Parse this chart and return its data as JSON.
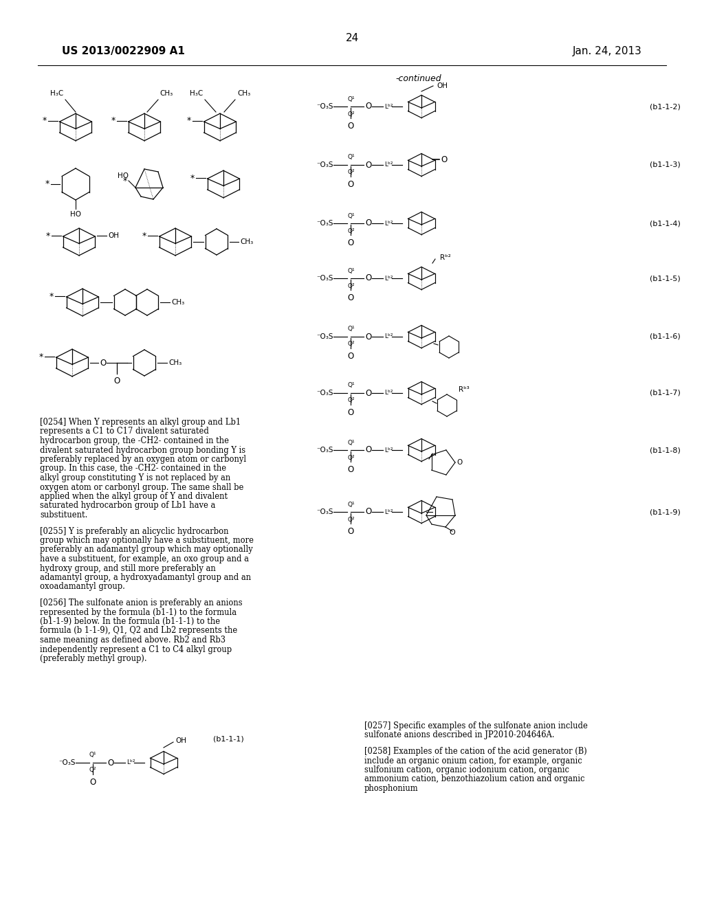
{
  "page_number": "24",
  "patent_number": "US 2013/0022909 A1",
  "patent_date": "Jan. 24, 2013",
  "background_color": "#ffffff",
  "text_color": "#000000",
  "continued_label": "-continued",
  "labels_right": [
    "(b1-1-2)",
    "(b1-1-3)",
    "(b1-1-4)",
    "(b1-1-5)",
    "(b1-1-6)",
    "(b1-1-7)",
    "(b1-1-8)",
    "(b1-1-9)"
  ],
  "label_left": "(b1-1-1)",
  "sup_minus": "⁻",
  "sup_O3S": "⁻O₃S",
  "Q1": "Q¹",
  "Q2": "Q²",
  "Lb2": "Lᵇ²",
  "Rb2": "Rᵇ²",
  "Rb3": "Rᵇ³",
  "H3C": "H₃C",
  "CH3": "CH₃",
  "OH": "OH",
  "HO": "HO",
  "paragraphs": [
    {
      "id": "0254",
      "text": "[0254]   When Y represents an alkyl group and Lb1 represents a C1 to C17 divalent saturated hydrocarbon group, the -CH2- contained in the divalent saturated hydrocarbon group bonding Y is preferably replaced by an oxygen atom or carbonyl group. In this case, the -CH2- contained in the alkyl group constituting Y is not replaced by an oxygen atom or carbonyl group. The same shall be applied when the alkyl group of Y and divalent saturated hydrocarbon group of Lb1 have a substituent."
    },
    {
      "id": "0255",
      "text": "[0255]   Y is preferably an alicyclic hydrocarbon group which may optionally have a substituent, more preferably an adamantyl group which may optionally have a substituent, for example, an oxo group and a hydroxy group, and still more preferably an adamantyl group, a hydroxyadamantyl group and an oxoadamantyl group."
    },
    {
      "id": "0256",
      "text": "[0256]   The sulfonate anion is preferably an anions represented by the formula (b1-1) to the formula (b1-1-9) below. In the formula (b1-1-1) to the formula (b 1-1-9), Q1, Q2 and Lb2 represents the same meaning as defined above. Rb2 and Rb3 independently represent a C1 to C4 alkyl group (preferably methyl group)."
    },
    {
      "id": "0257",
      "text": "[0257]   Specific examples of the sulfonate anion include sulfonate anions described in JP2010-204646A."
    },
    {
      "id": "0258",
      "text": "[0258]   Examples of the cation of the acid generator (B) include an organic onium cation, for example, organic sulfonium cation, organic iodonium cation, organic ammonium cation, benzothiazolium cation and organic phosphonium"
    }
  ]
}
